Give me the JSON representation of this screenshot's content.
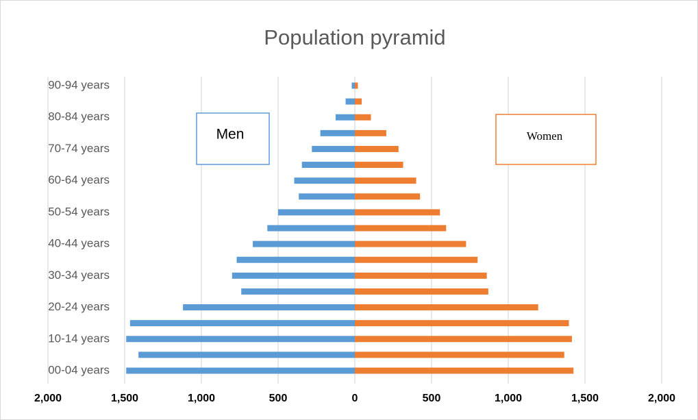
{
  "chart_data": {
    "type": "pyramid",
    "title": "Population pyramid",
    "categories": [
      "00-04 years",
      null,
      "10-14 years",
      null,
      "20-24 years",
      null,
      "30-34 years",
      null,
      "40-44 years",
      null,
      "50-54 years",
      null,
      "60-64 years",
      null,
      "70-74 years",
      null,
      "80-84 years",
      null,
      "90-94 years"
    ],
    "series": [
      {
        "name": "Men",
        "color": "#5b9bd5",
        "values": [
          -1490,
          -1410,
          -1490,
          -1465,
          -1120,
          -740,
          -800,
          -770,
          -665,
          -570,
          -500,
          -365,
          -395,
          -345,
          -280,
          -225,
          -125,
          -60,
          -20
        ]
      },
      {
        "name": "Women",
        "color": "#ed7d31",
        "values": [
          1425,
          1365,
          1415,
          1395,
          1195,
          870,
          860,
          800,
          725,
          595,
          555,
          425,
          400,
          315,
          285,
          205,
          105,
          45,
          20
        ]
      }
    ],
    "xlim": [
      -2000,
      2000
    ],
    "xticks": [
      {
        "value": -2000,
        "label": "2,000"
      },
      {
        "value": -1500,
        "label": "1,500"
      },
      {
        "value": -1000,
        "label": "1,000"
      },
      {
        "value": -500,
        "label": "500"
      },
      0,
      500,
      {
        "value": 1000,
        "label": "1,000"
      },
      {
        "value": 1500,
        "label": "1,500"
      },
      {
        "value": 2000,
        "label": "2,000"
      }
    ],
    "grid": true,
    "annotations": [
      "Men",
      "Women"
    ]
  }
}
